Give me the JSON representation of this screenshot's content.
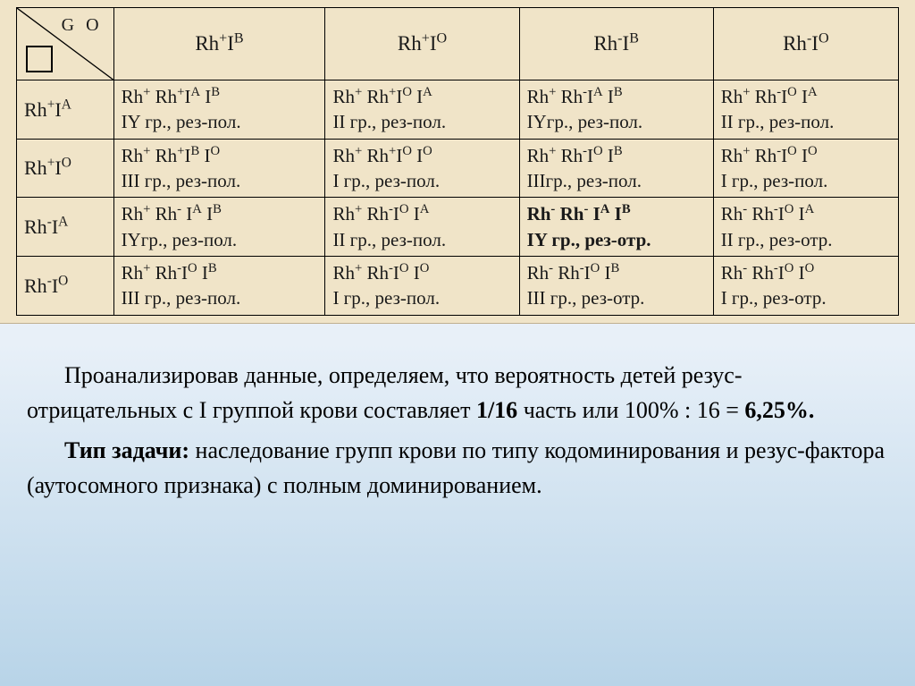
{
  "corner": {
    "label": "G O"
  },
  "col_headers": [
    "Rh<sup>+</sup>I<sup>B</sup>",
    "Rh<sup>+</sup>I<sup>O</sup>",
    "Rh<sup>-</sup>I<sup>B</sup>",
    "Rh<sup>-</sup>I<sup>O</sup>"
  ],
  "rows": [
    {
      "hdr": "Rh<sup>+</sup>I<sup>A</sup>",
      "cells": [
        {
          "l1": "Rh<sup>+</sup> Rh<sup>+</sup>I<sup>A</sup> I<sup>B</sup>",
          "l2": "IY гр., рез-пол."
        },
        {
          "l1": "Rh<sup>+</sup> Rh<sup>+</sup>I<sup>O</sup> I<sup>A</sup>",
          "l2": "II гр., рез-пол."
        },
        {
          "l1": "Rh<sup>+</sup> Rh<sup>-</sup>I<sup>A</sup> I<sup>B</sup>",
          "l2": "IYгр., рез-пол."
        },
        {
          "l1": "Rh<sup>+</sup> Rh<sup>-</sup>I<sup>O</sup> I<sup>A</sup>",
          "l2": "II гр., рез-пол."
        }
      ]
    },
    {
      "hdr": "Rh<sup>+</sup>I<sup>O</sup>",
      "cells": [
        {
          "l1": "Rh<sup>+</sup> Rh<sup>+</sup>I<sup>B</sup> I<sup>O</sup>",
          "l2": "III гр., рез-пол."
        },
        {
          "l1": "Rh<sup>+</sup> Rh<sup>+</sup>I<sup>O</sup> I<sup>O</sup>",
          "l2": "I гр., рез-пол."
        },
        {
          "l1": "Rh<sup>+</sup> Rh<sup>-</sup>I<sup>O</sup> I<sup>B</sup>",
          "l2": "IIIгр., рез-пол."
        },
        {
          "l1": "Rh<sup>+</sup> Rh<sup>-</sup>I<sup>O</sup> I<sup>O</sup>",
          "l2": "I гр., рез-пол."
        }
      ]
    },
    {
      "hdr": "Rh<sup>-</sup>I<sup>A</sup>",
      "cells": [
        {
          "l1": "Rh<sup>+</sup> Rh<sup>-</sup> I<sup>A</sup> I<sup>B</sup>",
          "l2": "IYгр., рез-пол."
        },
        {
          "l1": "Rh<sup>+</sup> Rh<sup>-</sup>I<sup>O</sup> I<sup>A</sup>",
          "l2": "II гр., рез-пол."
        },
        {
          "l1": "Rh<sup>-</sup> Rh<sup>-</sup> I<sup>A</sup> I<sup>B</sup>",
          "l2": "IY гр., рез-отр.",
          "bold": true
        },
        {
          "l1": "Rh<sup>-</sup> Rh<sup>-</sup>I<sup>O</sup> I<sup>A</sup>",
          "l2": "II гр., рез-отр."
        }
      ]
    },
    {
      "hdr": "Rh<sup>-</sup>I<sup>O</sup>",
      "cells": [
        {
          "l1": "Rh<sup>+</sup> Rh<sup>-</sup>I<sup>O</sup> I<sup>B</sup>",
          "l2": "III гр., рез-пол."
        },
        {
          "l1": "Rh<sup>+</sup> Rh<sup>-</sup>I<sup>O</sup> I<sup>O</sup>",
          "l2": "I гр., рез-пол."
        },
        {
          "l1": "Rh<sup>-</sup> Rh<sup>-</sup>I<sup>O</sup> I<sup>B</sup>",
          "l2": "III гр., рез-отр."
        },
        {
          "l1": "Rh<sup>-</sup> Rh<sup>-</sup>I<sup>O</sup> I<sup>O</sup>",
          "l2": "I гр., рез-отр."
        }
      ]
    }
  ],
  "caption": {
    "p1_a": "Проанализировав данные, определяем, что вероятность детей резус-отрицательных с I группой крови составляет ",
    "p1_b": "1/16",
    "p1_c": " часть или 100% : 16 = ",
    "p1_d": "6,25%.",
    "p2_a": "Тип задачи:",
    "p2_b": " наследование групп крови по типу кодоминирования и резус-фактора (аутосомного признака) с полным доминированием."
  },
  "style": {
    "paper_bg": "#f0e4c8",
    "border_color": "#000000",
    "text_color": "#1a1a1a",
    "caption_fontsize": 26,
    "cell_fontsize": 21
  }
}
